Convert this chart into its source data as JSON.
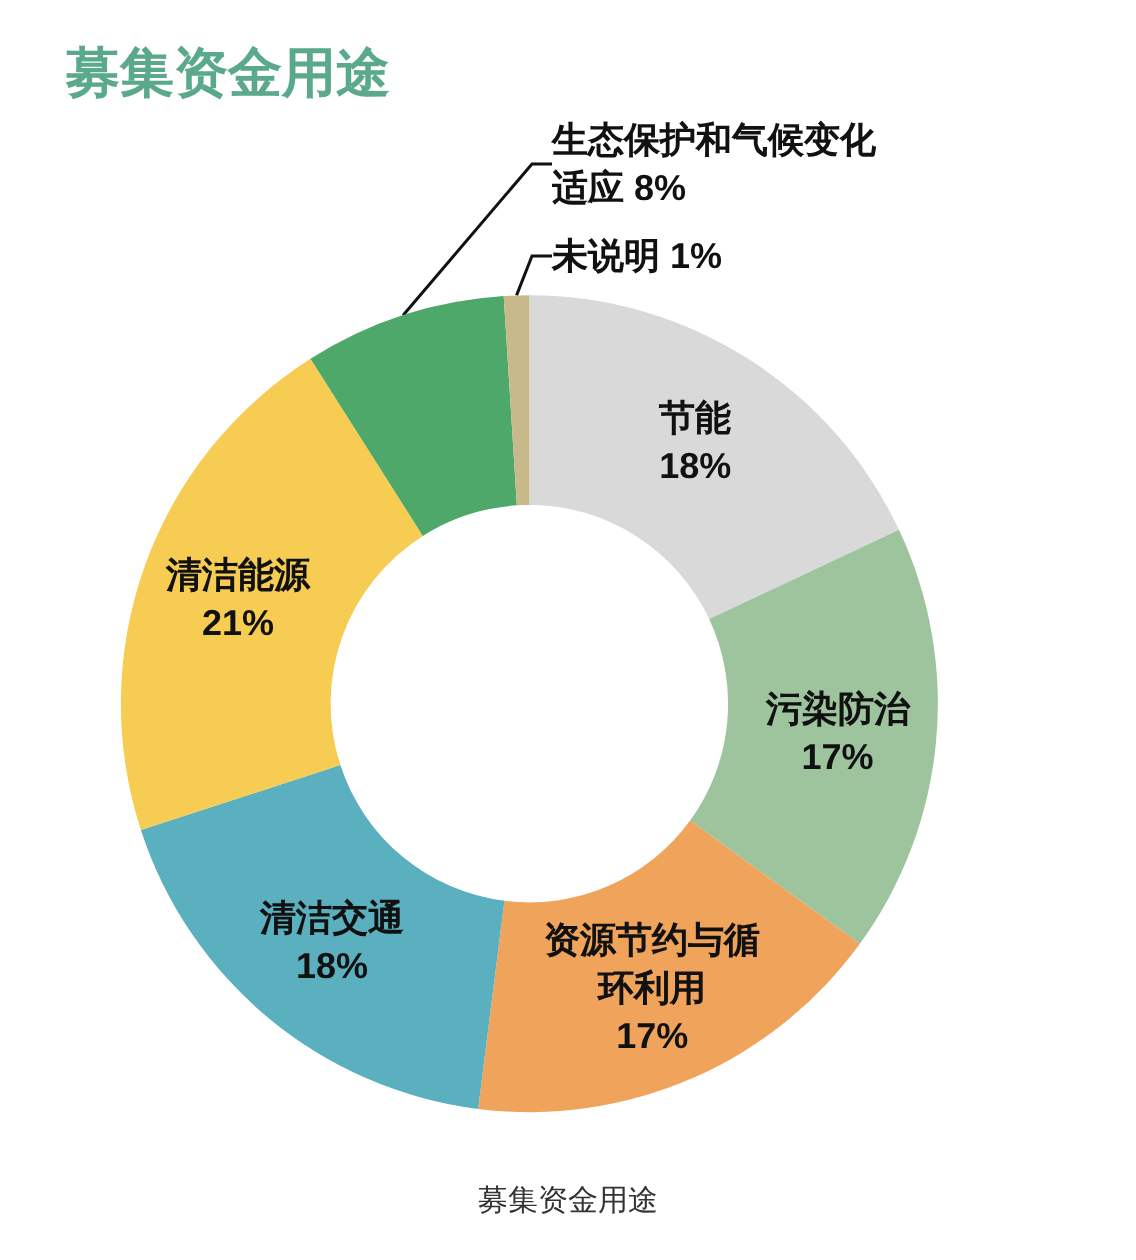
{
  "chart_data": {
    "type": "donut",
    "title": "募集资金用途",
    "categories": [
      "节能",
      "污染防治",
      "资源节约与循环利用",
      "清洁交通",
      "清洁能源",
      "生态保护和气候变化适应",
      "未说明"
    ],
    "values": [
      18,
      17,
      17,
      18,
      21,
      8,
      1
    ],
    "value_labels": [
      "18%",
      "17%",
      "17%",
      "18%",
      "21%",
      "8%",
      "1%"
    ],
    "colors": [
      "#d9d9d9",
      "#9dc49c",
      "#f0a35a",
      "#5ab0be",
      "#f7cc52",
      "#4ea86a",
      "#c8b98a"
    ],
    "annotations": [
      "募集资金用途"
    ],
    "legend": false
  }
}
